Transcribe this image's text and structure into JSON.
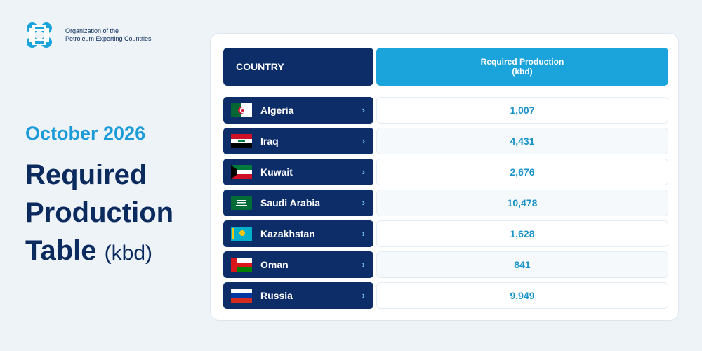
{
  "header": {
    "org_line1": "Organization of the",
    "org_line2": "Petroleum Exporting Countries",
    "logo_icon": "opec-logo-icon"
  },
  "left": {
    "subtitle": "October 2026",
    "title_line1": "Required",
    "title_line2": "Production",
    "title_line3": "Table",
    "title_unit": "(kbd)"
  },
  "table": {
    "col_country": "COUNTRY",
    "col_production": "Required Production\n(kbd)",
    "rows": [
      {
        "country": "Algeria",
        "value": "1,007",
        "flag": "algeria-flag-icon"
      },
      {
        "country": "Iraq",
        "value": "4,431",
        "flag": "iraq-flag-icon"
      },
      {
        "country": "Kuwait",
        "value": "2,676",
        "flag": "kuwait-flag-icon"
      },
      {
        "country": "Saudi Arabia",
        "value": "10,478",
        "flag": "saudi-arabia-flag-icon"
      },
      {
        "country": "Kazakhstan",
        "value": "1,628",
        "flag": "kazakhstan-flag-icon"
      },
      {
        "country": "Oman",
        "value": "841",
        "flag": "oman-flag-icon"
      },
      {
        "country": "Russia",
        "value": "9,949",
        "flag": "russia-flag-icon"
      }
    ]
  },
  "colors": {
    "navy": "#0d2d69",
    "accent_blue": "#1ba3db",
    "value_text": "#1a93c9"
  }
}
